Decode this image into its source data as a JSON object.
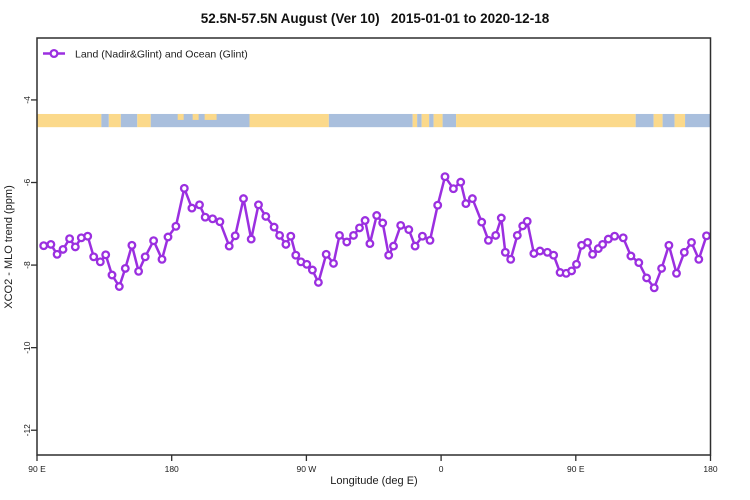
{
  "title": {
    "text": "52.5N-57.5N August (Ver 10)   2015-01-01 to 2020-12-18"
  },
  "legend": {
    "label": "Land (Nadir&Glint) and Ocean (Glint)"
  },
  "colors": {
    "series": "#9B2FE0",
    "marker_fill": "#ffffff",
    "land_band": "#FBD98B",
    "ocean_band": "#A9BFDD",
    "axis": "#2e2e2e"
  },
  "chart_data": {
    "type": "line",
    "title": "52.5N-57.5N August (Ver 10)   2015-01-01 to 2020-12-18",
    "xlabel": "Longitude (deg E)",
    "ylabel": "XCO2 - MLO trend (ppm)",
    "xlim": [
      90,
      540
    ],
    "ylim": [
      -12.6,
      -2.5
    ],
    "grid": false,
    "legend_position": "top-left-inside",
    "x_ticks": [
      {
        "value": 90,
        "label": "90 E"
      },
      {
        "value": 180,
        "label": "180"
      },
      {
        "value": 270,
        "label": "90 W"
      },
      {
        "value": 360,
        "label": "0"
      },
      {
        "value": 450,
        "label": "90 E"
      },
      {
        "value": 540,
        "label": "180"
      }
    ],
    "y_ticks": [
      {
        "value": -4,
        "label": "-4"
      },
      {
        "value": -6,
        "label": "-6"
      },
      {
        "value": -8,
        "label": "-8"
      },
      {
        "value": -10,
        "label": "-10"
      },
      {
        "value": -12,
        "label": "-12"
      }
    ],
    "land_ocean_band": {
      "description": "land(yellow)/ocean(blue) strip along longitude",
      "y_top_ppm": -4.34,
      "y_bottom_ppm": -4.66,
      "segments": [
        {
          "from": 90,
          "to": 133,
          "type": "land"
        },
        {
          "from": 133,
          "to": 138,
          "type": "ocean"
        },
        {
          "from": 138,
          "to": 146,
          "type": "land"
        },
        {
          "from": 146,
          "to": 157,
          "type": "ocean"
        },
        {
          "from": 157,
          "to": 166,
          "type": "land"
        },
        {
          "from": 166,
          "to": 232,
          "type": "ocean"
        },
        {
          "from": 184,
          "to": 188,
          "type": "land-thin"
        },
        {
          "from": 194,
          "to": 198,
          "type": "land-thin"
        },
        {
          "from": 202,
          "to": 210,
          "type": "land-thin"
        },
        {
          "from": 232,
          "to": 285,
          "type": "land"
        },
        {
          "from": 285,
          "to": 341,
          "type": "ocean"
        },
        {
          "from": 341,
          "to": 344,
          "type": "land"
        },
        {
          "from": 344,
          "to": 347,
          "type": "ocean"
        },
        {
          "from": 347,
          "to": 352,
          "type": "land"
        },
        {
          "from": 352,
          "to": 355,
          "type": "ocean"
        },
        {
          "from": 355,
          "to": 361,
          "type": "land"
        },
        {
          "from": 361,
          "to": 370,
          "type": "ocean"
        },
        {
          "from": 370,
          "to": 490,
          "type": "land"
        },
        {
          "from": 490,
          "to": 502,
          "type": "ocean"
        },
        {
          "from": 502,
          "to": 508,
          "type": "land"
        },
        {
          "from": 508,
          "to": 516,
          "type": "ocean"
        },
        {
          "from": 516,
          "to": 523,
          "type": "land"
        },
        {
          "from": 523,
          "to": 540,
          "type": "ocean"
        }
      ]
    },
    "series": [
      {
        "name": "Land (Nadir&Glint) and Ocean (Glint)",
        "marker": "open-circle",
        "x": [
          94.5,
          99.3,
          103.4,
          107.4,
          111.8,
          115.6,
          119.6,
          123.9,
          127.9,
          132.3,
          135.9,
          140.1,
          145.0,
          149.0,
          153.4,
          157.9,
          162.3,
          167.9,
          173.5,
          177.5,
          182.8,
          188.4,
          193.5,
          198.6,
          202.4,
          207.3,
          212.2,
          218.4,
          222.4,
          228.0,
          233.1,
          238.0,
          242.9,
          248.4,
          252.1,
          256.3,
          259.6,
          262.9,
          266.3,
          270.3,
          274.0,
          278.0,
          283.2,
          288.1,
          292.1,
          297.0,
          301.5,
          305.5,
          309.2,
          312.4,
          317.0,
          321.0,
          325.0,
          328.2,
          333.0,
          338.4,
          342.6,
          347.5,
          352.6,
          357.7,
          362.6,
          368.2,
          373.1,
          376.6,
          380.9,
          387.1,
          391.6,
          396.5,
          400.2,
          402.9,
          406.5,
          410.9,
          414.5,
          417.5,
          422.0,
          426.1,
          431.0,
          435.2,
          439.5,
          443.6,
          447.2,
          450.5,
          453.9,
          457.9,
          461.2,
          465.0,
          467.9,
          471.7,
          475.9,
          481.7,
          486.8,
          492.1,
          497.3,
          502.4,
          507.3,
          512.2,
          517.3,
          522.5,
          527.3,
          532.2,
          537.3
        ],
        "y": [
          -7.53,
          -7.5,
          -7.74,
          -7.62,
          -7.36,
          -7.56,
          -7.34,
          -7.3,
          -7.8,
          -7.92,
          -7.75,
          -8.24,
          -8.52,
          -8.08,
          -7.52,
          -8.15,
          -7.8,
          -7.41,
          -7.86,
          -7.32,
          -7.06,
          -6.14,
          -6.62,
          -6.54,
          -6.84,
          -6.88,
          -6.95,
          -7.54,
          -7.29,
          -6.39,
          -7.37,
          -6.54,
          -6.82,
          -7.08,
          -7.28,
          -7.5,
          -7.3,
          -7.76,
          -7.92,
          -7.98,
          -8.12,
          -8.42,
          -7.74,
          -7.96,
          -7.28,
          -7.44,
          -7.28,
          -7.1,
          -6.92,
          -7.48,
          -6.8,
          -6.98,
          -7.76,
          -7.54,
          -7.04,
          -7.14,
          -7.54,
          -7.3,
          -7.4,
          -6.55,
          -5.86,
          -6.15,
          -5.99,
          -6.51,
          -6.39,
          -6.96,
          -7.4,
          -7.28,
          -6.86,
          -7.69,
          -7.86,
          -7.28,
          -7.05,
          -6.94,
          -7.72,
          -7.66,
          -7.69,
          -7.76,
          -8.18,
          -8.2,
          -8.14,
          -7.98,
          -7.52,
          -7.45,
          -7.74,
          -7.6,
          -7.5,
          -7.37,
          -7.3,
          -7.34,
          -7.78,
          -7.94,
          -8.31,
          -8.55,
          -8.08,
          -7.52,
          -8.2,
          -7.69,
          -7.45,
          -7.86,
          -7.29
        ]
      }
    ]
  }
}
